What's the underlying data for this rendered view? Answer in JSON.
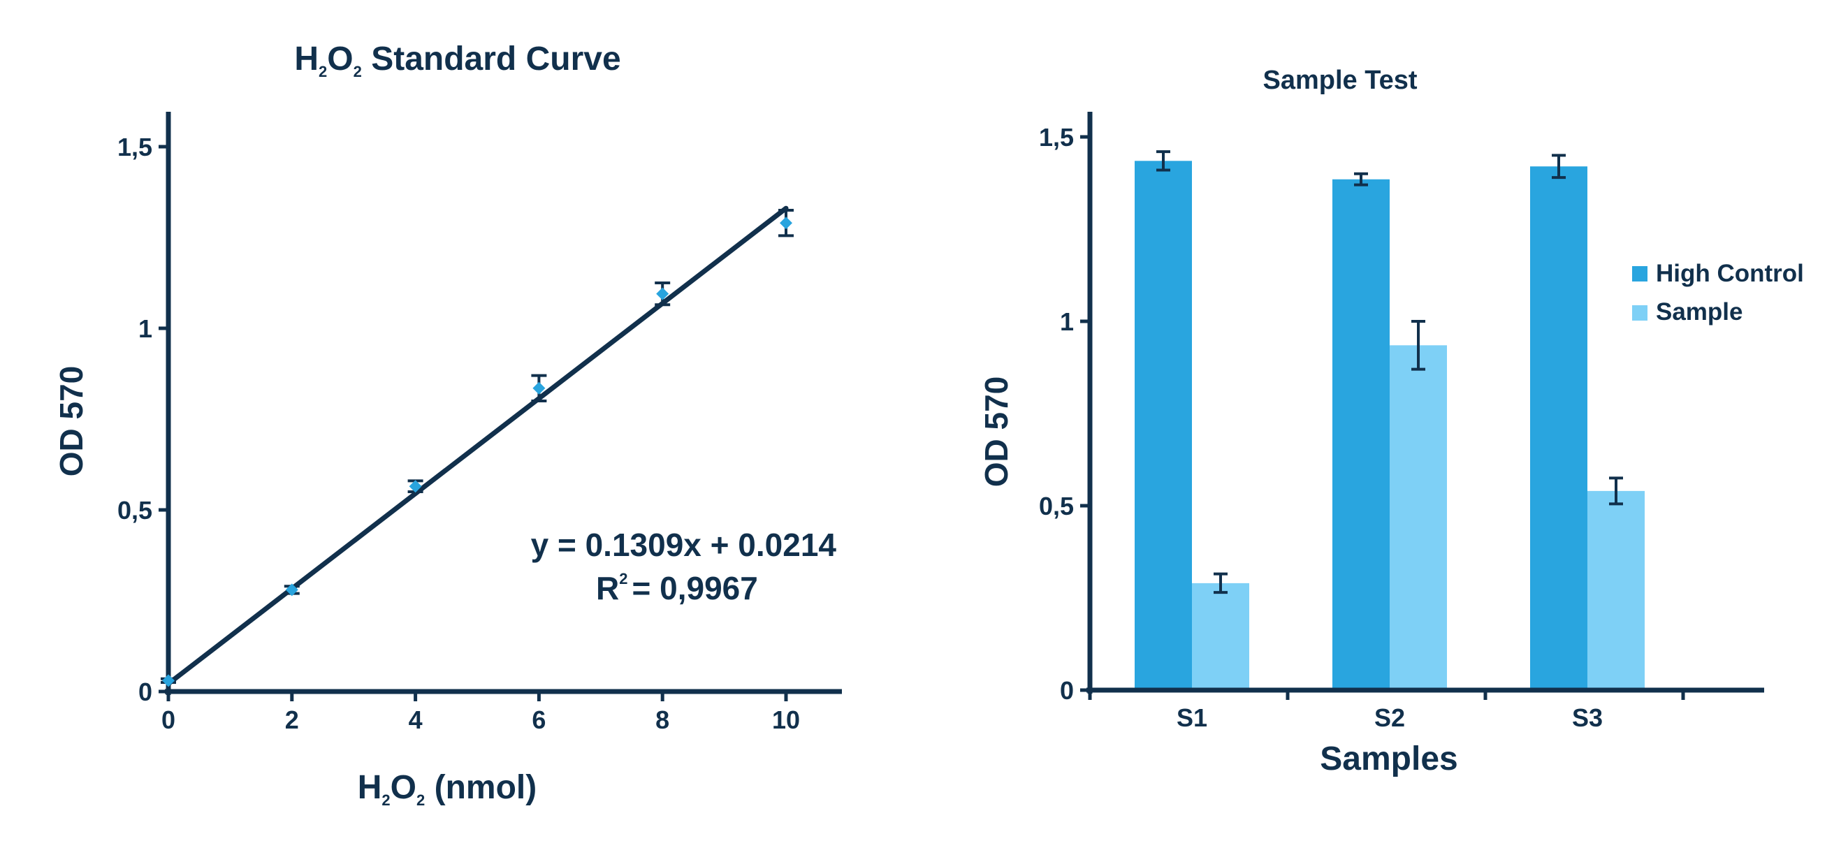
{
  "colors": {
    "axis": "#11304c",
    "text": "#11304c",
    "point": "#29a4de",
    "high_control": "#29a5df",
    "sample": "#7ed0f6"
  },
  "chart_data": [
    {
      "type": "scatter",
      "title": {
        "prefix": "H",
        "sub1": "2",
        "mid": "O",
        "sub2": "2",
        "rest": " Standard Curve"
      },
      "xlabel": {
        "prefix": "H",
        "sub1": "2",
        "mid": "O",
        "sub2": "2",
        "rest": " (nmol)"
      },
      "ylabel": "OD 570",
      "xlim": [
        0,
        11
      ],
      "ylim": [
        0,
        1.6
      ],
      "xticks": [
        0,
        2,
        4,
        6,
        8,
        10
      ],
      "xtick_labels": [
        "0",
        "2",
        "4",
        "6",
        "8",
        "10"
      ],
      "yticks": [
        0,
        0.5,
        1,
        1.5
      ],
      "ytick_labels": [
        "0",
        "0,5",
        "1",
        "1,5"
      ],
      "points": [
        {
          "x": 0,
          "y": 0.03,
          "err": 0.005
        },
        {
          "x": 2,
          "y": 0.28,
          "err": 0.01
        },
        {
          "x": 4,
          "y": 0.565,
          "err": 0.015
        },
        {
          "x": 6,
          "y": 0.835,
          "err": 0.035
        },
        {
          "x": 8,
          "y": 1.095,
          "err": 0.03
        },
        {
          "x": 10,
          "y": 1.29,
          "err": 0.035
        }
      ],
      "fit": {
        "slope": 0.1309,
        "intercept": 0.0214,
        "x_range": [
          0,
          10
        ]
      },
      "annotations": {
        "equation": "y = 0.1309x + 0.0214",
        "r2_label": "R",
        "r2_sup": "2",
        "r2_value": "= 0,9967"
      }
    },
    {
      "type": "bar",
      "title": "Sample Test",
      "xlabel": "Samples",
      "ylabel": "OD 570",
      "categories": [
        "S1",
        "S2",
        "S3"
      ],
      "ylim": [
        0,
        1.5
      ],
      "yticks": [
        0,
        0.5,
        1,
        1.5
      ],
      "ytick_labels": [
        "0",
        "0,5",
        "1",
        "1,5"
      ],
      "series": [
        {
          "name": "High Control",
          "values": [
            1.435,
            1.385,
            1.42
          ],
          "errors": [
            0.025,
            0.015,
            0.03
          ]
        },
        {
          "name": "Sample",
          "values": [
            0.29,
            0.935,
            0.54
          ],
          "errors": [
            0.025,
            0.065,
            0.035
          ]
        }
      ],
      "legend_position": "right"
    }
  ]
}
